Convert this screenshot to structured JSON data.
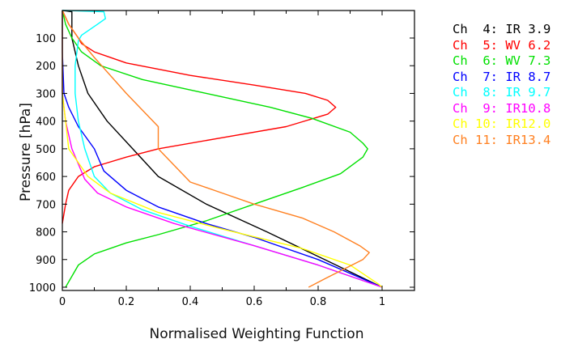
{
  "chart_data": {
    "type": "line",
    "title": "",
    "xlabel": "Normalised Weighting Function",
    "ylabel": "Pressure [hPa]",
    "xlim": [
      0,
      1.1
    ],
    "ylim": [
      1012,
      0
    ],
    "xticks": [
      "0",
      "0.2",
      "0.4",
      "0.6",
      "0.8",
      "1"
    ],
    "xtick_values": [
      0,
      0.2,
      0.4,
      0.6,
      0.8,
      1
    ],
    "yticks": [
      "100",
      "200",
      "300",
      "400",
      "500",
      "600",
      "700",
      "800",
      "900",
      "1000"
    ],
    "ytick_values": [
      100,
      200,
      300,
      400,
      500,
      600,
      700,
      800,
      900,
      1000
    ],
    "legend_position": "right-outside",
    "series": [
      {
        "name": "Ch  4: IR 3.9",
        "color": "#000000",
        "points": [
          [
            0,
            0
          ],
          [
            0.03,
            5
          ],
          [
            0.03,
            100
          ],
          [
            0.05,
            200
          ],
          [
            0.08,
            300
          ],
          [
            0.14,
            400
          ],
          [
            0.22,
            500
          ],
          [
            0.3,
            600
          ],
          [
            0.45,
            700
          ],
          [
            0.64,
            800
          ],
          [
            0.82,
            900
          ],
          [
            1.0,
            1000
          ]
        ]
      },
      {
        "name": "Ch  5: WV 6.2",
        "color": "#ff0000",
        "points": [
          [
            0,
            0
          ],
          [
            0.02,
            50
          ],
          [
            0.05,
            100
          ],
          [
            0.06,
            120
          ],
          [
            0.1,
            150
          ],
          [
            0.2,
            190
          ],
          [
            0.4,
            235
          ],
          [
            0.6,
            270
          ],
          [
            0.76,
            300
          ],
          [
            0.83,
            325
          ],
          [
            0.855,
            350
          ],
          [
            0.83,
            375
          ],
          [
            0.7,
            420
          ],
          [
            0.5,
            460
          ],
          [
            0.3,
            500
          ],
          [
            0.2,
            530
          ],
          [
            0.1,
            565
          ],
          [
            0.05,
            600
          ],
          [
            0.02,
            650
          ],
          [
            0.01,
            700
          ],
          [
            0,
            770
          ]
        ]
      },
      {
        "name": "Ch  6: WV 7.3",
        "color": "#00e000",
        "points": [
          [
            0,
            0
          ],
          [
            0.01,
            50
          ],
          [
            0.03,
            100
          ],
          [
            0.06,
            150
          ],
          [
            0.12,
            200
          ],
          [
            0.25,
            250
          ],
          [
            0.45,
            300
          ],
          [
            0.65,
            350
          ],
          [
            0.78,
            390
          ],
          [
            0.9,
            440
          ],
          [
            0.94,
            480
          ],
          [
            0.955,
            500
          ],
          [
            0.94,
            530
          ],
          [
            0.87,
            590
          ],
          [
            0.75,
            640
          ],
          [
            0.6,
            700
          ],
          [
            0.45,
            760
          ],
          [
            0.3,
            810
          ],
          [
            0.2,
            840
          ],
          [
            0.1,
            880
          ],
          [
            0.05,
            920
          ],
          [
            0.01,
            1000
          ]
        ]
      },
      {
        "name": "Ch  7: IR 8.7",
        "color": "#0000ff",
        "points": [
          [
            0,
            0
          ],
          [
            0,
            150
          ],
          [
            0.005,
            300
          ],
          [
            0.02,
            350
          ],
          [
            0.05,
            420
          ],
          [
            0.1,
            500
          ],
          [
            0.13,
            580
          ],
          [
            0.2,
            650
          ],
          [
            0.3,
            710
          ],
          [
            0.45,
            770
          ],
          [
            0.6,
            820
          ],
          [
            0.8,
            900
          ],
          [
            1.0,
            1000
          ]
        ]
      },
      {
        "name": "Ch  8: IR 9.7",
        "color": "#00ffff",
        "points": [
          [
            0,
            0
          ],
          [
            0.13,
            5
          ],
          [
            0.135,
            30
          ],
          [
            0.11,
            50
          ],
          [
            0.06,
            90
          ],
          [
            0.05,
            110
          ],
          [
            0.04,
            200
          ],
          [
            0.04,
            300
          ],
          [
            0.05,
            400
          ],
          [
            0.07,
            500
          ],
          [
            0.1,
            600
          ],
          [
            0.15,
            660
          ],
          [
            0.25,
            720
          ],
          [
            0.4,
            780
          ],
          [
            0.6,
            850
          ],
          [
            0.8,
            920
          ],
          [
            1.0,
            1000
          ]
        ]
      },
      {
        "name": "Ch  9: IR10.8",
        "color": "#ff00ff",
        "points": [
          [
            0,
            0
          ],
          [
            0,
            300
          ],
          [
            0.01,
            400
          ],
          [
            0.03,
            500
          ],
          [
            0.07,
            610
          ],
          [
            0.11,
            660
          ],
          [
            0.2,
            710
          ],
          [
            0.35,
            770
          ],
          [
            0.6,
            850
          ],
          [
            0.8,
            920
          ],
          [
            1.0,
            1000
          ]
        ]
      },
      {
        "name": "Ch 10: IR12.0",
        "color": "#ffff00",
        "points": [
          [
            0,
            0
          ],
          [
            0,
            300
          ],
          [
            0.01,
            400
          ],
          [
            0.02,
            500
          ],
          [
            0.08,
            600
          ],
          [
            0.15,
            660
          ],
          [
            0.3,
            730
          ],
          [
            0.5,
            790
          ],
          [
            0.75,
            860
          ],
          [
            0.9,
            920
          ],
          [
            0.99,
            990
          ],
          [
            1.0,
            1000
          ]
        ]
      },
      {
        "name": "Ch 11: IR13.4",
        "color": "#ff8020",
        "points": [
          [
            0,
            0
          ],
          [
            0.02,
            50
          ],
          [
            0.05,
            100
          ],
          [
            0.1,
            170
          ],
          [
            0.2,
            300
          ],
          [
            0.3,
            420
          ],
          [
            0.3,
            500
          ],
          [
            0.4,
            620
          ],
          [
            0.5,
            660
          ],
          [
            0.6,
            700
          ],
          [
            0.75,
            750
          ],
          [
            0.85,
            800
          ],
          [
            0.93,
            850
          ],
          [
            0.96,
            875
          ],
          [
            0.94,
            900
          ],
          [
            0.82,
            970
          ],
          [
            0.77,
            1000
          ]
        ]
      }
    ]
  }
}
